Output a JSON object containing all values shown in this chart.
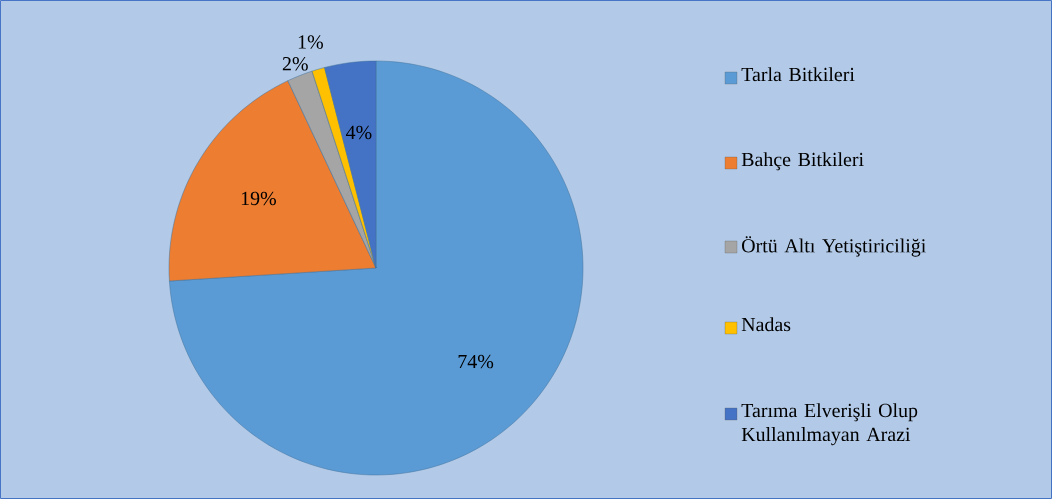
{
  "chart_data": {
    "type": "pie",
    "categories": [
      "Tarla Bitkileri",
      "Bahçe Bitkileri",
      "Örtü Altı Yetiştiriciliği",
      "Nadas",
      "Tarıma Elverişli Olup Kullanılmayan Arazi"
    ],
    "values": [
      74,
      19,
      2,
      1,
      4
    ],
    "value_labels": [
      "74%",
      "19%",
      "2%",
      "1%",
      "4%"
    ],
    "colors": [
      "#5b9bd5",
      "#ed7d31",
      "#a5a5a5",
      "#ffc000",
      "#4472c4"
    ],
    "legend": "right"
  }
}
